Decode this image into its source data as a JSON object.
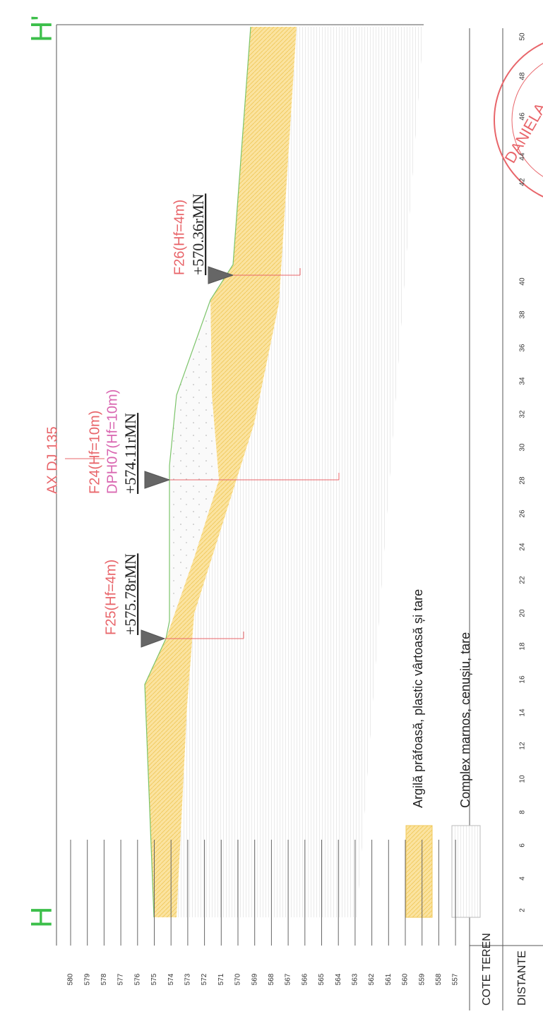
{
  "markers": {
    "start": "H",
    "end": "H'"
  },
  "axis_label": "AX DJ 135",
  "boreholes": [
    {
      "name": "F25(Hf=4m)",
      "elevation": "+575.78rMN"
    },
    {
      "name": "F24(Hf=10m)",
      "extra": "DPH07(Hf=10m)",
      "elevation": "+574.11rMN"
    },
    {
      "name": "F26(Hf=4m)",
      "elevation": "+570.36rMN"
    }
  ],
  "legend": [
    "Argilă prăfoasă, plastic vârtoasă și tare",
    "Complex marnos, cenușiu, tare"
  ],
  "elevations": [
    580,
    579,
    578,
    577,
    576,
    575,
    574,
    573,
    572,
    571,
    570,
    569,
    568,
    567,
    566,
    565,
    564,
    563,
    562,
    561,
    560,
    559,
    558,
    557
  ],
  "table": {
    "row1": "COTE TEREN",
    "row2": "DISTANTE"
  },
  "distances": [
    2,
    4,
    6,
    8,
    10,
    12,
    14,
    16,
    18,
    20,
    22,
    24,
    26,
    28,
    30,
    32,
    34,
    36,
    38,
    40,
    42,
    44,
    46,
    48,
    50
  ],
  "stamp": "DANIELA"
}
